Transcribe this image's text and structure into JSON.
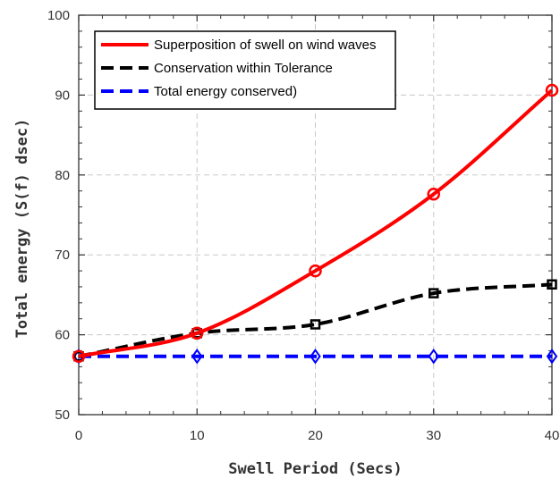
{
  "chart_data": {
    "type": "line",
    "xlabel": "Swell Period (Secs)",
    "ylabel": "Total energy (S(f) dsec)",
    "xlim": [
      0,
      40
    ],
    "ylim": [
      50,
      100
    ],
    "xticks": [
      0,
      10,
      20,
      30,
      40
    ],
    "yticks": [
      50,
      60,
      70,
      80,
      90,
      100
    ],
    "grid": true,
    "legend_position": "top-left",
    "series": [
      {
        "name": "Superposition of swell on wind waves",
        "color": "#ff0000",
        "line_style": "solid",
        "marker": "circle",
        "x": [
          0,
          10,
          20,
          30,
          40
        ],
        "values": [
          57.3,
          60.2,
          68.0,
          77.6,
          90.6
        ]
      },
      {
        "name": "Conservation within Tolerance",
        "color": "#000000",
        "line_style": "dashed",
        "marker": "square",
        "x": [
          0,
          10,
          20,
          30,
          40
        ],
        "values": [
          57.3,
          60.2,
          61.3,
          65.2,
          66.3
        ]
      },
      {
        "name": "Total energy conserved)",
        "color": "#0000ff",
        "line_style": "dashed",
        "marker": "diamond",
        "x": [
          0,
          10,
          20,
          30,
          40
        ],
        "values": [
          57.3,
          57.3,
          57.3,
          57.3,
          57.3
        ]
      }
    ]
  }
}
